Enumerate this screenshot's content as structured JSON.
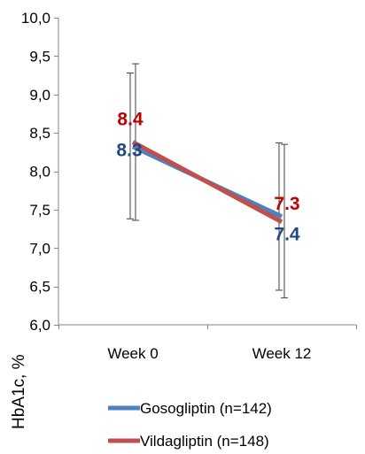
{
  "chart_data": {
    "type": "line",
    "categories": [
      "Week 0",
      "Week 12"
    ],
    "ylabel": "HbA1c, %",
    "ylim": [
      6.0,
      10.0
    ],
    "yticks": [
      "10,0",
      "9,5",
      "9,0",
      "8,5",
      "8,0",
      "7,5",
      "7,0",
      "6,5",
      "6,0"
    ],
    "ytick_values": [
      10.0,
      9.5,
      9.0,
      8.5,
      8.0,
      7.5,
      7.0,
      6.5,
      6.0
    ],
    "legend_position": "bottom",
    "series": [
      {
        "name": "Gosogliptin (n=142)",
        "color": "#4f81bd",
        "label_color": "#1f497d",
        "values": [
          8.32,
          7.41
        ],
        "error_low": [
          7.38,
          6.45
        ],
        "error_high": [
          9.28,
          8.37
        ],
        "data_labels": [
          "8.3",
          "7.4"
        ]
      },
      {
        "name": "Vildagliptin (n=148)",
        "color": "#c0504d",
        "label_color": "#c00000",
        "values": [
          8.38,
          7.34
        ],
        "error_low": [
          7.36,
          6.35
        ],
        "error_high": [
          9.4,
          8.35
        ],
        "data_labels": [
          "8.4",
          "7.3"
        ]
      }
    ]
  }
}
